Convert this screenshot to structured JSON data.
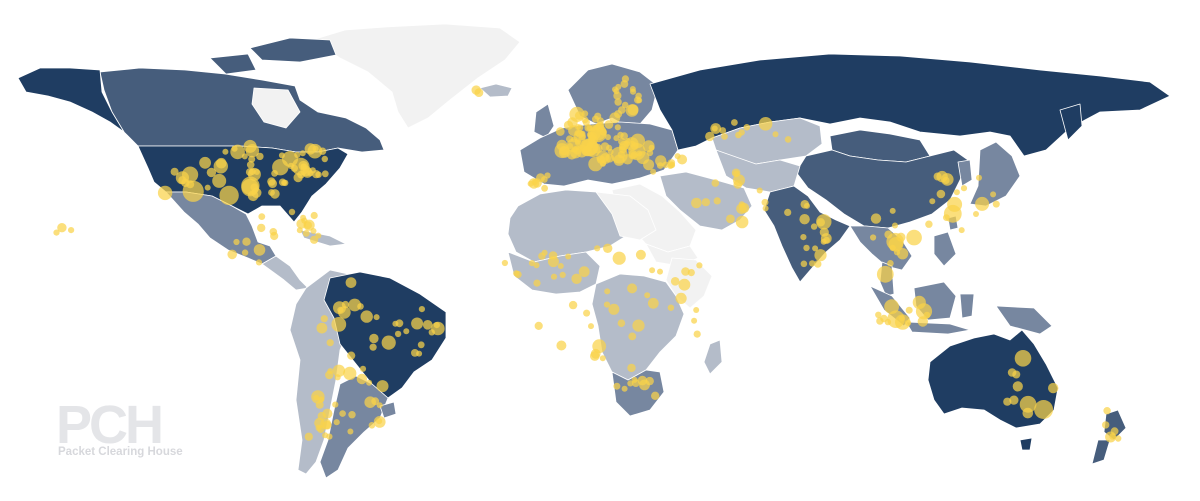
{
  "map": {
    "type": "choropleth-with-points",
    "colors": {
      "background": "#ffffff",
      "level_0": "#f2f2f2",
      "level_1": "#b4bcc9",
      "level_2": "#7787a0",
      "level_3": "#465d7c",
      "level_4": "#1f3d62",
      "point": "#f9d349",
      "point_opacity": 0.72
    },
    "icons": [
      "pch-logo"
    ]
  },
  "watermark": {
    "logo_text": "PCH",
    "subtitle": "Packet Clearing House"
  }
}
